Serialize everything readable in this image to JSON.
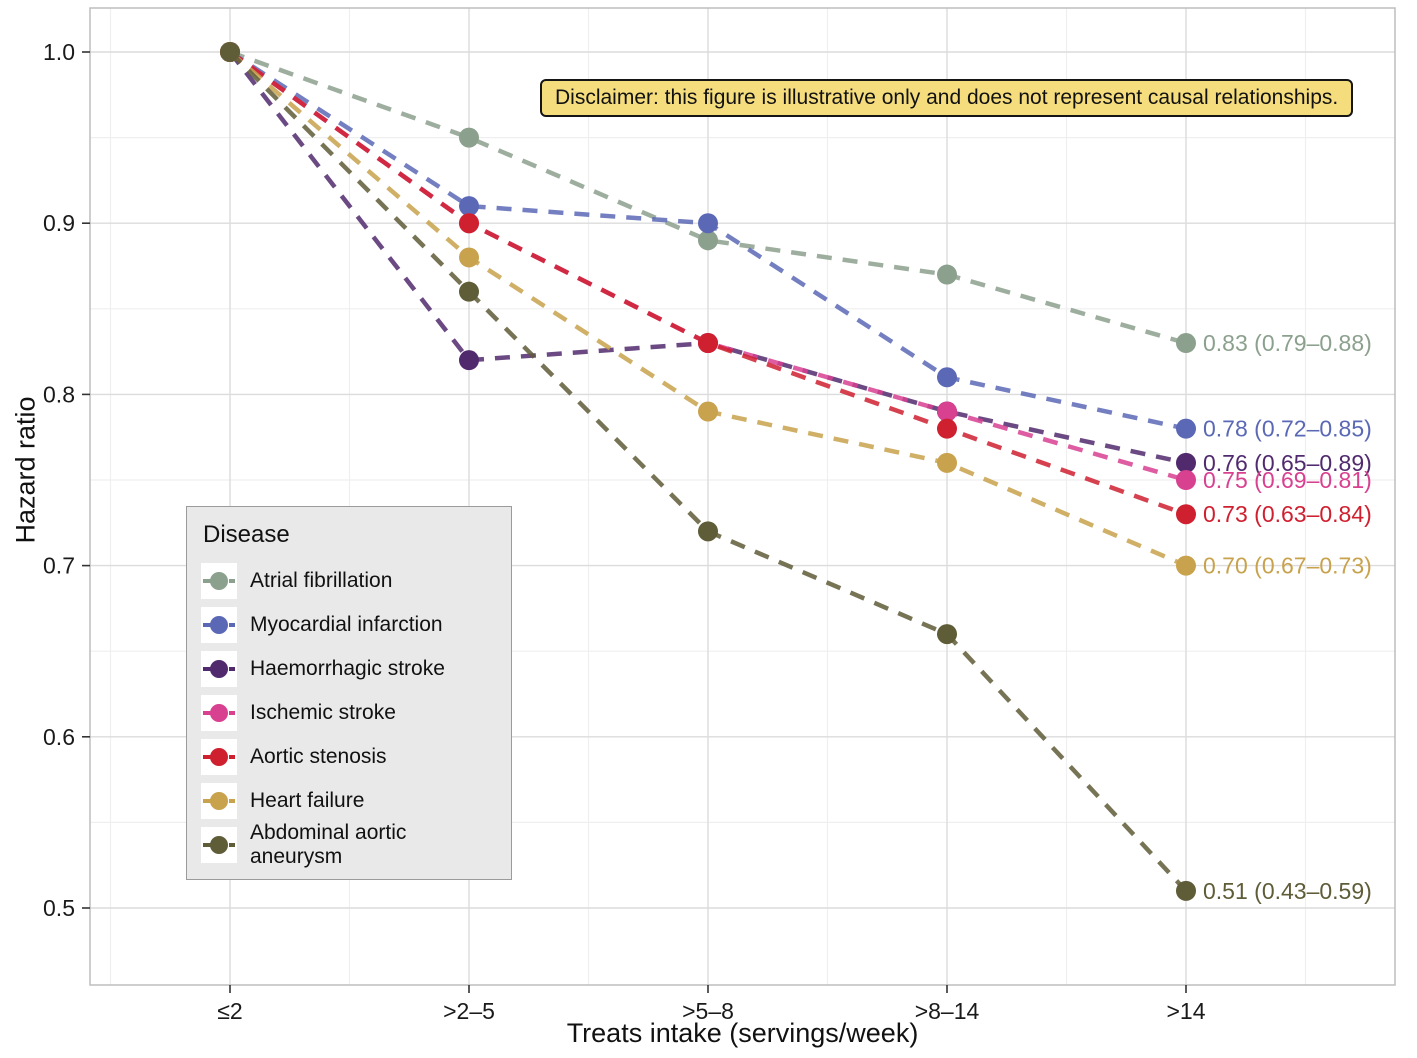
{
  "figure": {
    "disclaimer": "Disclaimer: this figure is illustrative only and does not represent causal relationships.",
    "x_title": "Treats intake (servings/week)",
    "y_title": "Hazard ratio",
    "legend_title": "Disease"
  },
  "chart_data": {
    "type": "line",
    "title": "",
    "xlabel": "Treats intake (servings/week)",
    "ylabel": "Hazard ratio",
    "categories": [
      "≤2",
      ">2–5",
      ">5–8",
      ">8–14",
      ">14"
    ],
    "y_ticks": [
      0.5,
      0.6,
      0.7,
      0.8,
      0.9,
      1.0
    ],
    "ylim": [
      0.455,
      1.026
    ],
    "grid": "major and minor, light gray on white",
    "line_style": "dashed with filled circle markers",
    "legend_position": "inside lower-left",
    "series": [
      {
        "name": "Atrial fibrillation",
        "color": "#8ca08e",
        "values": [
          1.0,
          0.95,
          0.89,
          0.87,
          0.83
        ],
        "end_label": "0.83 (0.79–0.88)"
      },
      {
        "name": "Myocardial infarction",
        "color": "#5a68b5",
        "values": [
          1.0,
          0.91,
          0.9,
          0.81,
          0.78
        ],
        "end_label": "0.78 (0.72–0.85)"
      },
      {
        "name": "Haemorrhagic stroke",
        "color": "#512a6e",
        "values": [
          1.0,
          0.82,
          0.83,
          0.79,
          0.76
        ],
        "end_label": "0.76 (0.65–0.89)"
      },
      {
        "name": "Ischemic stroke",
        "color": "#d84090",
        "values": [
          1.0,
          0.9,
          0.83,
          0.79,
          0.75
        ],
        "end_label": "0.75 (0.69–0.81)"
      },
      {
        "name": "Aortic stenosis",
        "color": "#cf2030",
        "values": [
          1.0,
          0.9,
          0.83,
          0.78,
          0.73
        ],
        "end_label": "0.73 (0.63–0.84)"
      },
      {
        "name": "Heart failure",
        "color": "#c8a24c",
        "values": [
          1.0,
          0.88,
          0.79,
          0.76,
          0.7
        ],
        "end_label": "0.70 (0.67–0.73)"
      },
      {
        "name": "Abdominal aortic aneurysm",
        "color": "#5f5c38",
        "values": [
          1.0,
          0.86,
          0.72,
          0.66,
          0.51
        ],
        "end_label": "0.51 (0.43–0.59)"
      }
    ]
  }
}
